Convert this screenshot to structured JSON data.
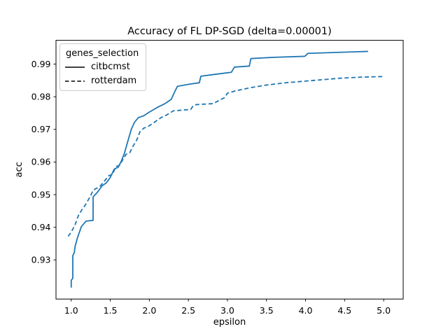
{
  "figure": {
    "background": "#ffffff",
    "frame_color": "#000000",
    "text_color": "#000000"
  },
  "chart_data": {
    "type": "line",
    "title": "Accuracy of FL DP-SGD (delta=0.00001)",
    "xlabel": "epsilon",
    "ylabel": "acc",
    "xlim": [
      0.805,
      5.25
    ],
    "ylim": [
      0.918,
      0.9973
    ],
    "grid": false,
    "line_color": "#1f77b4",
    "xticks": [
      {
        "value": 1.0,
        "label": "1.0"
      },
      {
        "value": 1.5,
        "label": "1.5"
      },
      {
        "value": 2.0,
        "label": "2.0"
      },
      {
        "value": 2.5,
        "label": "2.5"
      },
      {
        "value": 3.0,
        "label": "3.0"
      },
      {
        "value": 3.5,
        "label": "3.5"
      },
      {
        "value": 4.0,
        "label": "4.0"
      },
      {
        "value": 4.5,
        "label": "4.5"
      },
      {
        "value": 5.0,
        "label": "5.0"
      }
    ],
    "yticks": [
      {
        "value": 0.93,
        "label": "0.93"
      },
      {
        "value": 0.94,
        "label": "0.94"
      },
      {
        "value": 0.95,
        "label": "0.95"
      },
      {
        "value": 0.96,
        "label": "0.96"
      },
      {
        "value": 0.97,
        "label": "0.97"
      },
      {
        "value": 0.98,
        "label": "0.98"
      },
      {
        "value": 0.99,
        "label": "0.99"
      }
    ],
    "legend": {
      "position": "upper left",
      "title": "genes_selection",
      "items": [
        {
          "label": "citbcmst",
          "line_style": "solid",
          "handle_color": "#262626"
        },
        {
          "label": "rotterdam",
          "line_style": "dashed",
          "handle_color": "#262626"
        }
      ]
    },
    "series": [
      {
        "name": "citbcmst",
        "line_style": "solid",
        "color": "#1f77b4",
        "points": [
          [
            1.0,
            0.9215
          ],
          [
            1.0,
            0.9237
          ],
          [
            1.02,
            0.9244
          ],
          [
            1.02,
            0.9313
          ],
          [
            1.04,
            0.9323
          ],
          [
            1.05,
            0.9342
          ],
          [
            1.08,
            0.9368
          ],
          [
            1.13,
            0.9402
          ],
          [
            1.19,
            0.9419
          ],
          [
            1.28,
            0.9421
          ],
          [
            1.28,
            0.9493
          ],
          [
            1.33,
            0.9506
          ],
          [
            1.4,
            0.9528
          ],
          [
            1.45,
            0.9536
          ],
          [
            1.5,
            0.9553
          ],
          [
            1.55,
            0.9578
          ],
          [
            1.6,
            0.9584
          ],
          [
            1.64,
            0.9602
          ],
          [
            1.68,
            0.9626
          ],
          [
            1.72,
            0.966
          ],
          [
            1.77,
            0.9701
          ],
          [
            1.81,
            0.9722
          ],
          [
            1.86,
            0.9736
          ],
          [
            1.93,
            0.9742
          ],
          [
            2.0,
            0.9753
          ],
          [
            2.1,
            0.9767
          ],
          [
            2.2,
            0.9779
          ],
          [
            2.28,
            0.9792
          ],
          [
            2.33,
            0.9818
          ],
          [
            2.36,
            0.9832
          ],
          [
            2.5,
            0.9838
          ],
          [
            2.64,
            0.9843
          ],
          [
            2.66,
            0.9863
          ],
          [
            2.85,
            0.9869
          ],
          [
            3.05,
            0.9875
          ],
          [
            3.09,
            0.9891
          ],
          [
            3.28,
            0.9894
          ],
          [
            3.3,
            0.9917
          ],
          [
            3.6,
            0.9921
          ],
          [
            3.99,
            0.9924
          ],
          [
            4.03,
            0.9933
          ],
          [
            4.4,
            0.9936
          ],
          [
            4.8,
            0.9939
          ]
        ]
      },
      {
        "name": "rotterdam",
        "line_style": "dashed",
        "color": "#1f77b4",
        "points": [
          [
            0.96,
            0.9372
          ],
          [
            1.0,
            0.9385
          ],
          [
            1.05,
            0.9408
          ],
          [
            1.09,
            0.9435
          ],
          [
            1.14,
            0.9455
          ],
          [
            1.18,
            0.9468
          ],
          [
            1.25,
            0.9497
          ],
          [
            1.28,
            0.9514
          ],
          [
            1.33,
            0.952
          ],
          [
            1.37,
            0.9526
          ],
          [
            1.43,
            0.9543
          ],
          [
            1.48,
            0.9558
          ],
          [
            1.53,
            0.9562
          ],
          [
            1.57,
            0.9586
          ],
          [
            1.62,
            0.959
          ],
          [
            1.66,
            0.9607
          ],
          [
            1.7,
            0.9623
          ],
          [
            1.75,
            0.9629
          ],
          [
            1.79,
            0.9648
          ],
          [
            1.84,
            0.9668
          ],
          [
            1.88,
            0.9693
          ],
          [
            1.93,
            0.9704
          ],
          [
            1.98,
            0.9708
          ],
          [
            2.06,
            0.9721
          ],
          [
            2.15,
            0.9736
          ],
          [
            2.22,
            0.9744
          ],
          [
            2.31,
            0.9757
          ],
          [
            2.53,
            0.9761
          ],
          [
            2.56,
            0.9772
          ],
          [
            2.6,
            0.9776
          ],
          [
            2.82,
            0.9779
          ],
          [
            2.9,
            0.979
          ],
          [
            2.96,
            0.9797
          ],
          [
            3.0,
            0.9811
          ],
          [
            3.1,
            0.9818
          ],
          [
            3.3,
            0.9828
          ],
          [
            3.5,
            0.9836
          ],
          [
            3.75,
            0.9843
          ],
          [
            3.95,
            0.9847
          ],
          [
            4.2,
            0.9852
          ],
          [
            4.45,
            0.9857
          ],
          [
            4.7,
            0.986
          ],
          [
            5.0,
            0.9862
          ]
        ]
      }
    ]
  }
}
